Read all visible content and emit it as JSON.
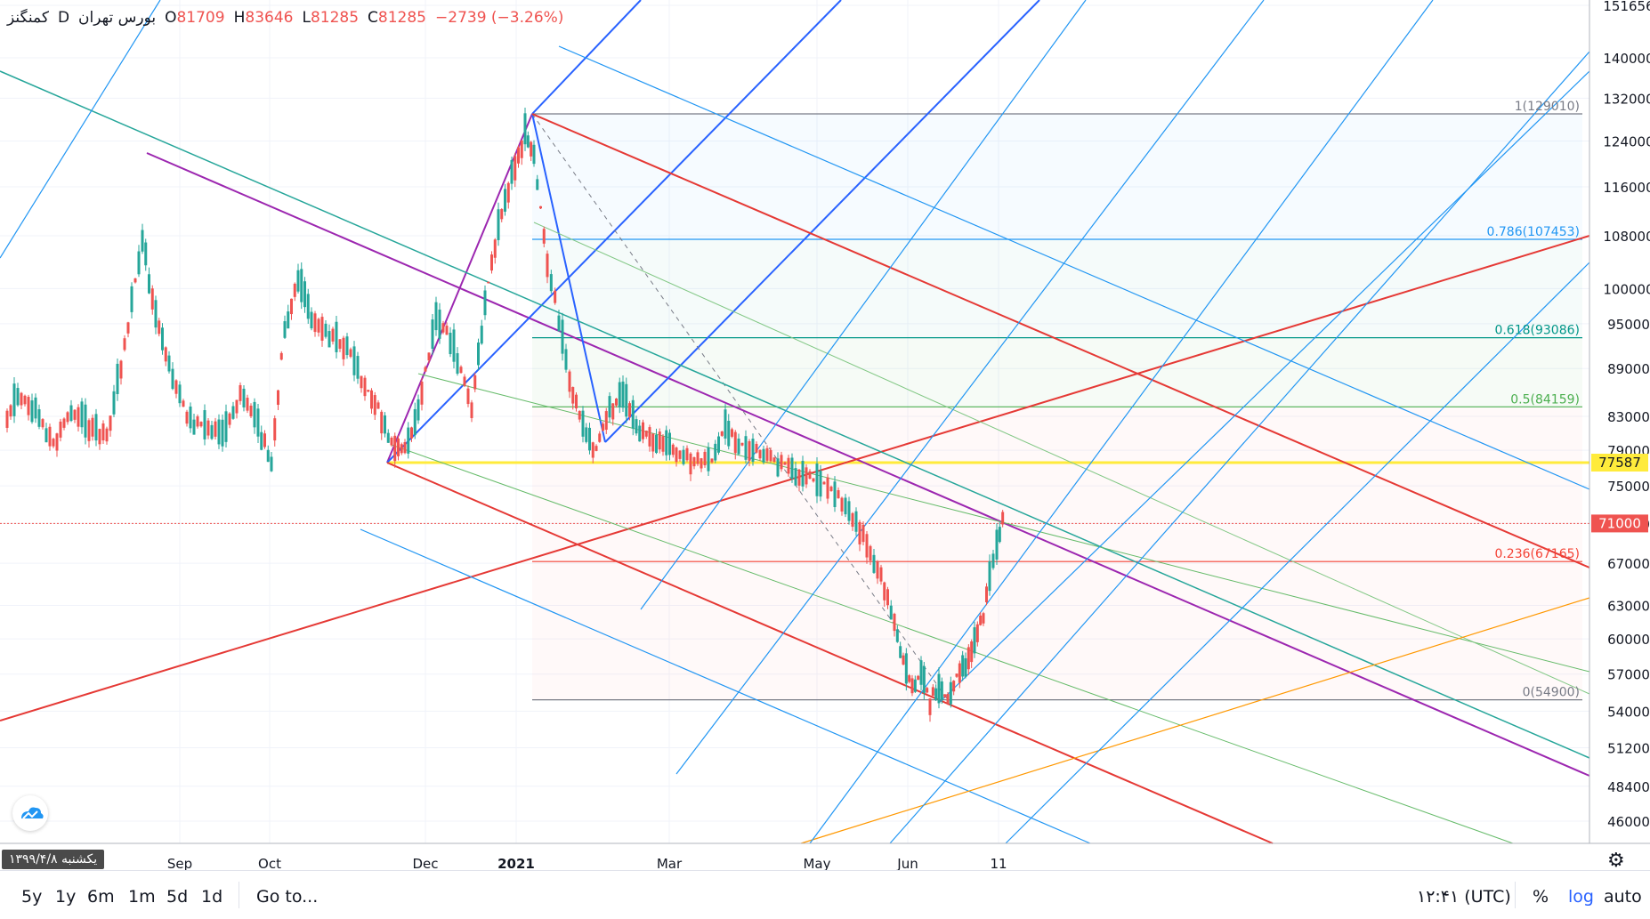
{
  "header": {
    "symbol": "کمنگنز",
    "interval": "D",
    "exchange": "بورس تهران",
    "o_label": "O",
    "o_value": "81709",
    "h_label": "H",
    "h_value": "83646",
    "l_label": "L",
    "l_value": "81285",
    "c_label": "C",
    "c_value": "81285",
    "change": "−2739 (−3.26%)"
  },
  "toolbar": {
    "ranges": [
      "5y",
      "1y",
      "6m",
      "1m",
      "5d",
      "1d"
    ],
    "goto_label": "Go to...",
    "clock": "۱۲:۴۱ (UTC)",
    "percent_label": "%",
    "log_label": "log",
    "auto_label": "auto"
  },
  "date_badge": "یکشنبه ۱۳۹۹/۴/۸",
  "colors": {
    "up": "#26a69a",
    "down": "#ef5350",
    "yellow": "#ffeb3b",
    "purple": "#9c27b0",
    "blue": "#2962ff",
    "lightblue": "#2196f3",
    "red": "#e53935",
    "orange": "#ff9800",
    "teal": "#26a69a",
    "green": "#66bb6a"
  },
  "chart_data": {
    "type": "candlestick",
    "price_axis": {
      "scale": "log",
      "ticks": [
        46000,
        48400,
        51200,
        54000,
        57000,
        60000,
        63000,
        67000,
        71000,
        75000,
        79000,
        83000,
        89000,
        95000,
        100000,
        108000,
        116000,
        124000,
        132000,
        140000,
        151656
      ],
      "tick_labels": [
        "46000",
        "48400",
        "51200",
        "54000",
        "57000",
        "60000",
        "63000",
        "67000",
        "71000",
        "75000",
        "79000",
        "83000",
        "89000",
        "95000",
        "100000",
        "108000",
        "116000",
        "124000",
        "132000",
        "140000",
        "151656"
      ]
    },
    "time_axis": {
      "labels": [
        "Sep",
        "Oct",
        "Dec",
        "2021",
        "Mar",
        "May",
        "Jun",
        "11"
      ]
    },
    "price_badges": [
      {
        "value": 77587,
        "label": "77587",
        "color": "#ffeb3b"
      },
      {
        "value": 71000,
        "label": "71000",
        "color": "#ef5350"
      }
    ],
    "fib_levels": [
      {
        "ratio": "1",
        "price": 129010,
        "label": "1(129010)"
      },
      {
        "ratio": "0.786",
        "price": 107453,
        "label": "0.786(107453)"
      },
      {
        "ratio": "0.618",
        "price": 93086,
        "label": "0.618(93086)"
      },
      {
        "ratio": "0.5",
        "price": 84159,
        "label": "0.5(84159)"
      },
      {
        "ratio": "0.236",
        "price": 67165,
        "label": "0.236(67165)"
      },
      {
        "ratio": "0",
        "price": 54900,
        "label": "0(54900)"
      }
    ],
    "swing_points": [
      {
        "date": "Nov",
        "price": 77587
      },
      {
        "date": "2021",
        "price": 129010
      },
      {
        "date": "Feb",
        "price": 80000
      },
      {
        "date": "Jun",
        "price": 54900
      }
    ],
    "last_close": 81285
  }
}
